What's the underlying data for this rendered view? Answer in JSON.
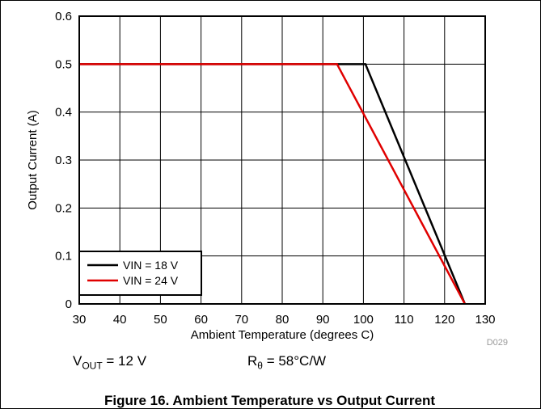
{
  "chart_data": {
    "type": "line",
    "xlabel": "Ambient Temperature (degrees C)",
    "ylabel": "Output Current (A)",
    "xlim": [
      30,
      130
    ],
    "ylim": [
      0,
      0.6
    ],
    "x_ticks": [
      "30",
      "40",
      "50",
      "60",
      "70",
      "80",
      "90",
      "100",
      "110",
      "120",
      "130"
    ],
    "y_ticks": [
      "0",
      "0.1",
      "0.2",
      "0.3",
      "0.4",
      "0.5",
      "0.6"
    ],
    "grid": true,
    "legend_position": "bottom-left",
    "series": [
      {
        "name": "VIN = 18 V",
        "color": "#000000",
        "x": [
          30,
          100.5,
          125
        ],
        "y": [
          0.5,
          0.5,
          0
        ]
      },
      {
        "name": "VIN = 24 V",
        "color": "#e00000",
        "x": [
          30,
          93.5,
          125
        ],
        "y": [
          0.5,
          0.5,
          0
        ]
      }
    ],
    "figure_code": "D029"
  },
  "conditions": {
    "vout_symbol": "V",
    "vout_sub": "OUT",
    "vout_value": " = 12 V",
    "r_symbol": "R",
    "r_sub": "θ",
    "r_value": " = 58°C/W"
  },
  "caption": "Figure 16. Ambient Temperature vs Output Current"
}
